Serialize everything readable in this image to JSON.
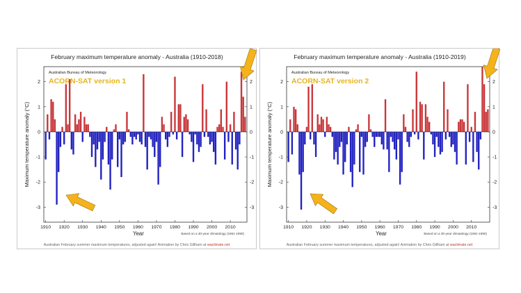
{
  "arrow_color": "#f5b21b",
  "chart_data": [
    {
      "type": "bar",
      "title": "February maximum temperature anomaly - Australia (1910-2018)",
      "org": "Australian Bureau of Meteorology",
      "version_label": "ACORN-SAT version 1",
      "xlabel": "Year",
      "ylabel": "Maximum temperature anomaly (°C)",
      "ylim": [
        -3.6,
        2.6
      ],
      "xlim": [
        1909,
        2019
      ],
      "yticks": [
        -3,
        -2,
        -1,
        0,
        1,
        2
      ],
      "xticks": [
        1910,
        1920,
        1930,
        1940,
        1950,
        1960,
        1970,
        1980,
        1990,
        2000,
        2010
      ],
      "note": "Based on a 30-year climatology (1961-1990)",
      "colors": {
        "positive": "#c8373a",
        "negative": "#2222c0"
      },
      "arrows": [
        "pointing to 1915 bar",
        "pointing to 2018 bar"
      ],
      "caption": {
        "text": "Australian February summer maximum temperatures, adjusted again! Animation by Chris Gillham at ",
        "site": "waclimate.net"
      },
      "x": [
        1910,
        1911,
        1912,
        1913,
        1914,
        1915,
        1916,
        1917,
        1918,
        1919,
        1920,
        1921,
        1922,
        1923,
        1924,
        1925,
        1926,
        1927,
        1928,
        1929,
        1930,
        1931,
        1932,
        1933,
        1934,
        1935,
        1936,
        1937,
        1938,
        1939,
        1940,
        1941,
        1942,
        1943,
        1944,
        1945,
        1946,
        1947,
        1948,
        1949,
        1950,
        1951,
        1952,
        1953,
        1954,
        1955,
        1956,
        1957,
        1958,
        1959,
        1960,
        1961,
        1962,
        1963,
        1964,
        1965,
        1966,
        1967,
        1968,
        1969,
        1970,
        1971,
        1972,
        1973,
        1974,
        1975,
        1976,
        1977,
        1978,
        1979,
        1980,
        1981,
        1982,
        1983,
        1984,
        1985,
        1986,
        1987,
        1988,
        1989,
        1990,
        1991,
        1992,
        1993,
        1994,
        1995,
        1996,
        1997,
        1998,
        1999,
        2000,
        2001,
        2002,
        2003,
        2004,
        2005,
        2006,
        2007,
        2008,
        2009,
        2010,
        2011,
        2012,
        2013,
        2014,
        2015,
        2016,
        2017,
        2018
      ],
      "values": [
        -1.1,
        0.7,
        -0.3,
        1.3,
        1.2,
        0.5,
        -2.9,
        -1.6,
        -0.6,
        0.2,
        -0.5,
        1.9,
        0.3,
        2.1,
        -0.7,
        -0.9,
        0.7,
        0.3,
        0.5,
        0.8,
        -0.4,
        0.6,
        0.3,
        0.3,
        -0.2,
        -1.0,
        -0.5,
        -1.4,
        -0.7,
        -0.4,
        -1.9,
        -1.1,
        -0.4,
        0.2,
        -1.3,
        -2.3,
        -1.1,
        0.1,
        0.3,
        -1.4,
        -0.3,
        -1.8,
        -0.5,
        -0.4,
        0.8,
        0.1,
        -0.2,
        -0.5,
        -0.2,
        -0.3,
        -0.1,
        -0.4,
        -0.5,
        2.3,
        -0.6,
        -1.5,
        -0.2,
        -0.3,
        -0.6,
        -1.0,
        -0.4,
        -2.1,
        -1.4,
        0.6,
        0.3,
        -0.3,
        -0.6,
        -0.2,
        0.8,
        -0.1,
        2.2,
        -0.3,
        1.1,
        1.1,
        -1.0,
        0.6,
        0.7,
        0.5,
        -0.1,
        -0.4,
        -1.2,
        -0.1,
        -0.5,
        -0.8,
        -0.6,
        1.9,
        -0.2,
        0.9,
        -0.2,
        -0.5,
        -0.4,
        -0.8,
        -1.3,
        0.2,
        0.3,
        0.9,
        0.2,
        -1.1,
        2.0,
        -0.4,
        0.3,
        -1.3,
        0.8,
        -0.7,
        -1.5,
        -0.5,
        2.4,
        1.4,
        0.6
      ]
    },
    {
      "type": "bar",
      "title": "February maximum temperature anomaly - Australia (1910-2019)",
      "org": "Australian Bureau of Meteorology",
      "version_label": "ACORN-SAT version 2",
      "xlabel": "Year",
      "ylabel": "Maximum temperature anomaly (°C)",
      "ylim": [
        -3.6,
        2.6
      ],
      "xlim": [
        1909,
        2020
      ],
      "yticks": [
        -3,
        -2,
        -1,
        0,
        1,
        2
      ],
      "xticks": [
        1910,
        1920,
        1930,
        1940,
        1950,
        1960,
        1970,
        1980,
        1990,
        2000,
        2010
      ],
      "note": "Based on a 30-year climatology (1961-1990)",
      "colors": {
        "positive": "#c8373a",
        "negative": "#2222c0"
      },
      "arrows": [
        "pointing to 1917 bar",
        "pointing to 2019 bar"
      ],
      "caption": {
        "text": "Australian February summer maximum temperatures, adjusted again! Animation by Chris Gillham at ",
        "site": "waclimate.net"
      },
      "x": [
        1910,
        1911,
        1912,
        1913,
        1914,
        1915,
        1916,
        1917,
        1918,
        1919,
        1920,
        1921,
        1922,
        1923,
        1924,
        1925,
        1926,
        1927,
        1928,
        1929,
        1930,
        1931,
        1932,
        1933,
        1934,
        1935,
        1936,
        1937,
        1938,
        1939,
        1940,
        1941,
        1942,
        1943,
        1944,
        1945,
        1946,
        1947,
        1948,
        1949,
        1950,
        1951,
        1952,
        1953,
        1954,
        1955,
        1956,
        1957,
        1958,
        1959,
        1960,
        1961,
        1962,
        1963,
        1964,
        1965,
        1966,
        1967,
        1968,
        1969,
        1970,
        1971,
        1972,
        1973,
        1974,
        1975,
        1976,
        1977,
        1978,
        1979,
        1980,
        1981,
        1982,
        1983,
        1984,
        1985,
        1986,
        1987,
        1988,
        1989,
        1990,
        1991,
        1992,
        1993,
        1994,
        1995,
        1996,
        1997,
        1998,
        1999,
        2000,
        2001,
        2002,
        2003,
        2004,
        2005,
        2006,
        2007,
        2008,
        2009,
        2010,
        2011,
        2012,
        2013,
        2014,
        2015,
        2016,
        2017,
        2018,
        2019
      ],
      "values": [
        -1.2,
        0.5,
        -0.9,
        1.0,
        0.9,
        0.3,
        -1.7,
        -3.1,
        -1.6,
        -0.5,
        0.2,
        1.8,
        -0.3,
        1.9,
        -0.5,
        -1.0,
        0.7,
        0.3,
        0.6,
        0.5,
        -0.2,
        0.6,
        0.3,
        0.2,
        -0.2,
        -1.1,
        -0.8,
        -1.3,
        -0.6,
        -0.4,
        -1.7,
        -1.2,
        -0.5,
        0.2,
        -1.6,
        -2.2,
        -1.3,
        0.1,
        0.3,
        -1.6,
        -0.2,
        -1.7,
        -0.6,
        -0.4,
        0.7,
        0.1,
        -0.2,
        -0.6,
        -0.2,
        -0.2,
        -0.2,
        -0.5,
        -0.7,
        1.3,
        -0.7,
        -1.6,
        -0.2,
        -0.4,
        -0.7,
        -1.1,
        -0.3,
        -2.1,
        -1.6,
        0.7,
        0.2,
        -0.4,
        -0.6,
        -0.2,
        0.9,
        -0.1,
        2.4,
        -0.3,
        1.2,
        1.1,
        -1.1,
        1.1,
        0.6,
        0.4,
        -0.1,
        -0.5,
        -1.0,
        -0.2,
        -0.6,
        -0.9,
        -0.8,
        2.0,
        -0.3,
        0.9,
        -0.2,
        -0.6,
        -0.5,
        -0.8,
        -1.3,
        0.4,
        0.5,
        0.5,
        0.4,
        -1.3,
        1.9,
        -0.4,
        0.2,
        -1.2,
        0.8,
        -0.8,
        -1.5,
        -0.3,
        2.6,
        1.9,
        0.8,
        0.9
      ]
    }
  ]
}
